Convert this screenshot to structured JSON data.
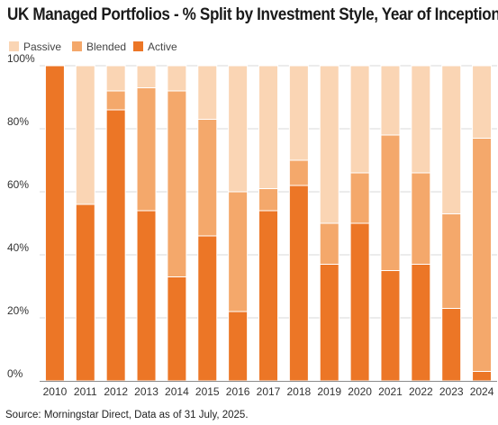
{
  "chart_data": {
    "type": "bar",
    "stacked": true,
    "title": "UK Managed Portfolios - % Split by Investment Style, Year of Inception",
    "xlabel": "",
    "ylabel": "",
    "ylim": [
      0,
      100
    ],
    "yticks": [
      "0%",
      "20%",
      "40%",
      "60%",
      "80%",
      "100%"
    ],
    "grid": true,
    "legend_position": "top-left",
    "categories": [
      "2010",
      "2011",
      "2012",
      "2013",
      "2014",
      "2015",
      "2016",
      "2017",
      "2018",
      "2019",
      "2020",
      "2021",
      "2022",
      "2023",
      "2024"
    ],
    "series": [
      {
        "name": "Active",
        "color": "#ec7626",
        "values": [
          100,
          56,
          86,
          54,
          33,
          46,
          22,
          54,
          62,
          37,
          50,
          35,
          37,
          23,
          3
        ]
      },
      {
        "name": "Blended",
        "color": "#f4a86b",
        "values": [
          0,
          0,
          6,
          39,
          59,
          37,
          38,
          7,
          8,
          13,
          16,
          43,
          29,
          30,
          74
        ]
      },
      {
        "name": "Passive",
        "color": "#fad5b4",
        "values": [
          0,
          44,
          8,
          7,
          8,
          17,
          40,
          39,
          30,
          50,
          34,
          22,
          34,
          47,
          23
        ]
      }
    ],
    "legend_order": [
      "Passive",
      "Blended",
      "Active"
    ],
    "source": "Source: Morningstar Direct, Data as of 31 July, 2025."
  }
}
